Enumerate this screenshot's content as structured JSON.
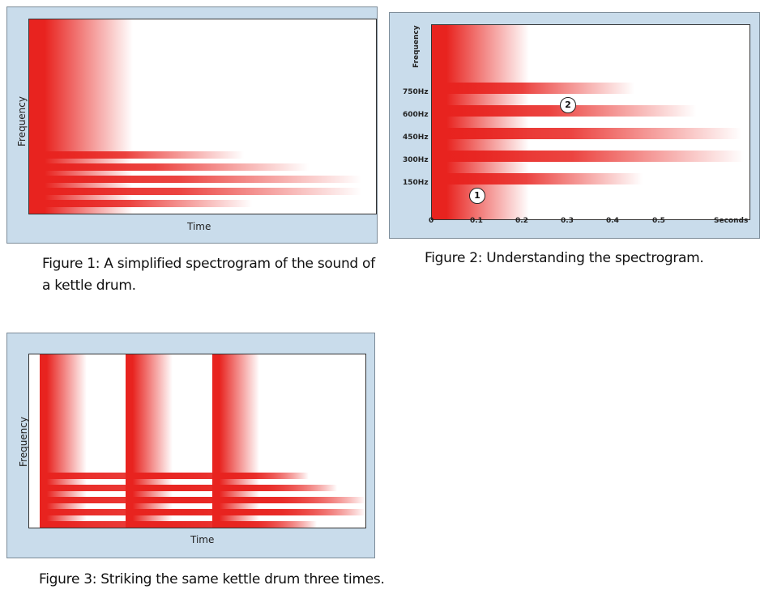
{
  "figure1": {
    "y_label": "Frequency",
    "x_label": "Time",
    "caption_line1": "Figure 1: A simplified spectrogram of the sound of",
    "caption_line2": "a kettle drum."
  },
  "figure2": {
    "y_label": "Frequency",
    "caption": "Figure 2: Understanding the spectrogram.",
    "marker1": "1",
    "marker2": "2",
    "y_ticks": [
      "750Hz",
      "600Hz",
      "450Hz",
      "300Hz",
      "150Hz"
    ],
    "x_ticks": [
      "0",
      "0.1",
      "0.2",
      "0.3",
      "0.4",
      "0.5",
      "Seconds"
    ]
  },
  "figure3": {
    "y_label": "Frequency",
    "x_label": "Time",
    "caption": "Figure 3: Striking the same kettle drum three times."
  },
  "colors": {
    "panel_bg": "#c9dceb",
    "tone": "#e8231f"
  }
}
